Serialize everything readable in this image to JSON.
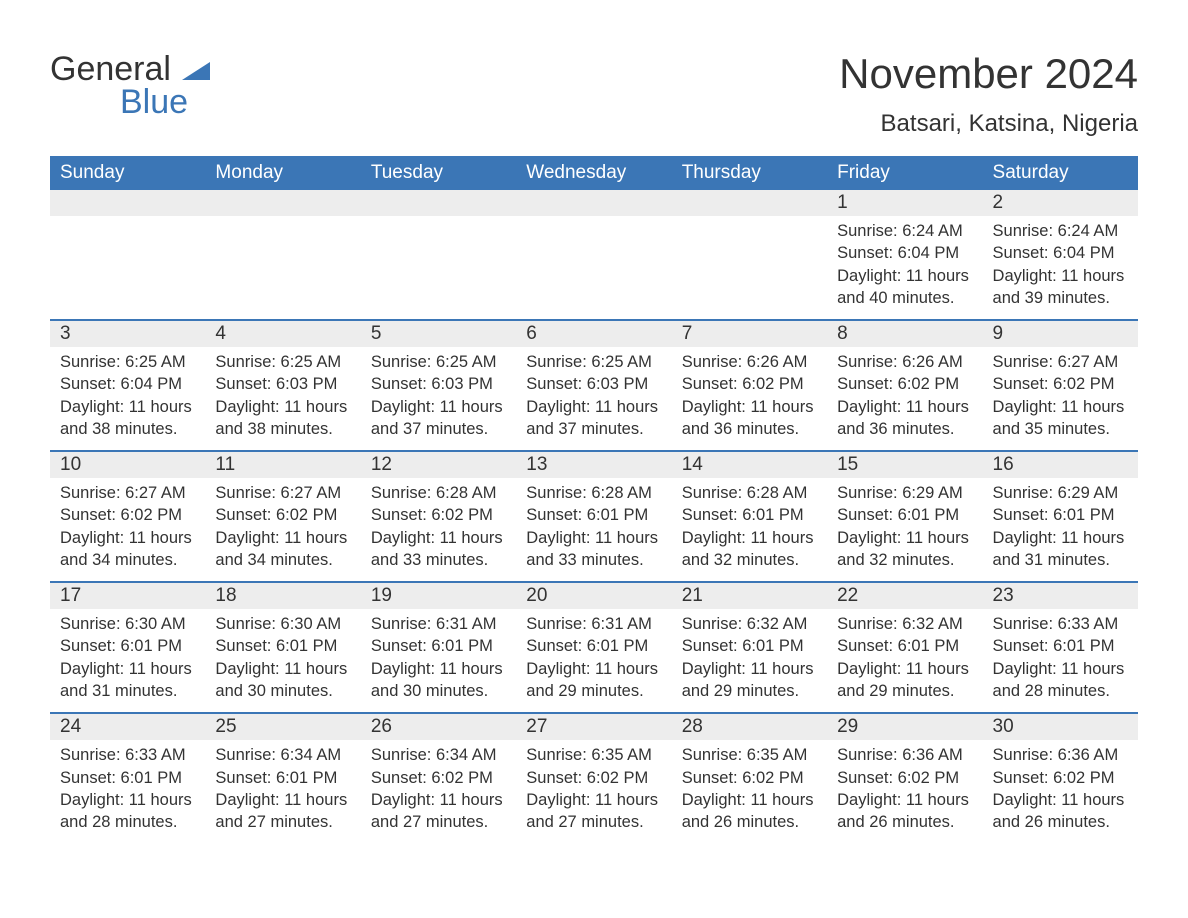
{
  "brand": {
    "word1": "General",
    "word2": "Blue"
  },
  "title": "November 2024",
  "location": "Batsari, Katsina, Nigeria",
  "colors": {
    "header_bg": "#3b76b6",
    "header_text": "#ffffff",
    "daynum_bg": "#ededed",
    "text": "#333333",
    "rule": "#3b76b6",
    "page_bg": "#ffffff"
  },
  "weekdays": [
    "Sunday",
    "Monday",
    "Tuesday",
    "Wednesday",
    "Thursday",
    "Friday",
    "Saturday"
  ],
  "weeks": [
    [
      null,
      null,
      null,
      null,
      null,
      {
        "n": "1",
        "sr": "6:24 AM",
        "ss": "6:04 PM",
        "dl": "11 hours and 40 minutes."
      },
      {
        "n": "2",
        "sr": "6:24 AM",
        "ss": "6:04 PM",
        "dl": "11 hours and 39 minutes."
      }
    ],
    [
      {
        "n": "3",
        "sr": "6:25 AM",
        "ss": "6:04 PM",
        "dl": "11 hours and 38 minutes."
      },
      {
        "n": "4",
        "sr": "6:25 AM",
        "ss": "6:03 PM",
        "dl": "11 hours and 38 minutes."
      },
      {
        "n": "5",
        "sr": "6:25 AM",
        "ss": "6:03 PM",
        "dl": "11 hours and 37 minutes."
      },
      {
        "n": "6",
        "sr": "6:25 AM",
        "ss": "6:03 PM",
        "dl": "11 hours and 37 minutes."
      },
      {
        "n": "7",
        "sr": "6:26 AM",
        "ss": "6:02 PM",
        "dl": "11 hours and 36 minutes."
      },
      {
        "n": "8",
        "sr": "6:26 AM",
        "ss": "6:02 PM",
        "dl": "11 hours and 36 minutes."
      },
      {
        "n": "9",
        "sr": "6:27 AM",
        "ss": "6:02 PM",
        "dl": "11 hours and 35 minutes."
      }
    ],
    [
      {
        "n": "10",
        "sr": "6:27 AM",
        "ss": "6:02 PM",
        "dl": "11 hours and 34 minutes."
      },
      {
        "n": "11",
        "sr": "6:27 AM",
        "ss": "6:02 PM",
        "dl": "11 hours and 34 minutes."
      },
      {
        "n": "12",
        "sr": "6:28 AM",
        "ss": "6:02 PM",
        "dl": "11 hours and 33 minutes."
      },
      {
        "n": "13",
        "sr": "6:28 AM",
        "ss": "6:01 PM",
        "dl": "11 hours and 33 minutes."
      },
      {
        "n": "14",
        "sr": "6:28 AM",
        "ss": "6:01 PM",
        "dl": "11 hours and 32 minutes."
      },
      {
        "n": "15",
        "sr": "6:29 AM",
        "ss": "6:01 PM",
        "dl": "11 hours and 32 minutes."
      },
      {
        "n": "16",
        "sr": "6:29 AM",
        "ss": "6:01 PM",
        "dl": "11 hours and 31 minutes."
      }
    ],
    [
      {
        "n": "17",
        "sr": "6:30 AM",
        "ss": "6:01 PM",
        "dl": "11 hours and 31 minutes."
      },
      {
        "n": "18",
        "sr": "6:30 AM",
        "ss": "6:01 PM",
        "dl": "11 hours and 30 minutes."
      },
      {
        "n": "19",
        "sr": "6:31 AM",
        "ss": "6:01 PM",
        "dl": "11 hours and 30 minutes."
      },
      {
        "n": "20",
        "sr": "6:31 AM",
        "ss": "6:01 PM",
        "dl": "11 hours and 29 minutes."
      },
      {
        "n": "21",
        "sr": "6:32 AM",
        "ss": "6:01 PM",
        "dl": "11 hours and 29 minutes."
      },
      {
        "n": "22",
        "sr": "6:32 AM",
        "ss": "6:01 PM",
        "dl": "11 hours and 29 minutes."
      },
      {
        "n": "23",
        "sr": "6:33 AM",
        "ss": "6:01 PM",
        "dl": "11 hours and 28 minutes."
      }
    ],
    [
      {
        "n": "24",
        "sr": "6:33 AM",
        "ss": "6:01 PM",
        "dl": "11 hours and 28 minutes."
      },
      {
        "n": "25",
        "sr": "6:34 AM",
        "ss": "6:01 PM",
        "dl": "11 hours and 27 minutes."
      },
      {
        "n": "26",
        "sr": "6:34 AM",
        "ss": "6:02 PM",
        "dl": "11 hours and 27 minutes."
      },
      {
        "n": "27",
        "sr": "6:35 AM",
        "ss": "6:02 PM",
        "dl": "11 hours and 27 minutes."
      },
      {
        "n": "28",
        "sr": "6:35 AM",
        "ss": "6:02 PM",
        "dl": "11 hours and 26 minutes."
      },
      {
        "n": "29",
        "sr": "6:36 AM",
        "ss": "6:02 PM",
        "dl": "11 hours and 26 minutes."
      },
      {
        "n": "30",
        "sr": "6:36 AM",
        "ss": "6:02 PM",
        "dl": "11 hours and 26 minutes."
      }
    ]
  ],
  "labels": {
    "sunrise": "Sunrise: ",
    "sunset": "Sunset: ",
    "daylight": "Daylight: "
  }
}
